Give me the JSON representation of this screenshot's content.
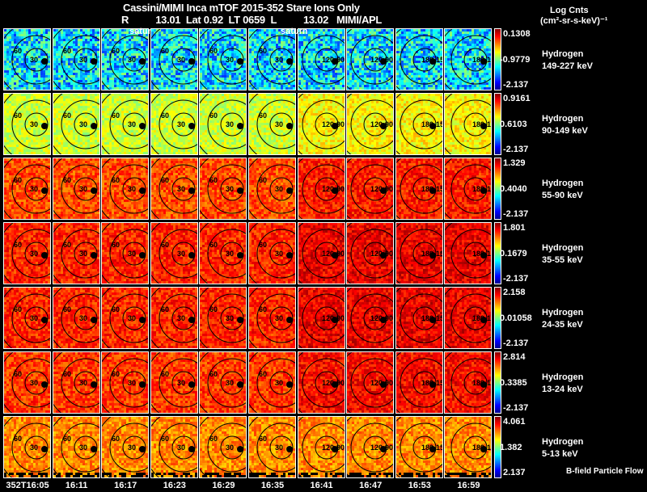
{
  "header": {
    "title": "Cassini/MIMI Inca mTOF  2015-352    Stare    Ions Only",
    "subtitle": "R          13.01  Lat 0.92  LT 0659  L          13.02   MIMI/APL",
    "saturn_label_1": "satur",
    "saturn_label_2": "saturn"
  },
  "units": {
    "line1": "Log Cnts",
    "line2": "(cm²-sr-s-keV)⁻¹"
  },
  "footer_note": "B-field Particle Flow",
  "chart_data": {
    "type": "heatmap",
    "title": "Cassini/MIMI Inca mTOF 2015-352 Stare Ions Only",
    "columns": [
      "352T16:05",
      "16:11",
      "16:17",
      "16:23",
      "16:29",
      "16:35",
      "16:41",
      "16:47",
      "16:53",
      "16:59"
    ],
    "contour_labels": [
      "30",
      "60",
      "90",
      "120",
      "150",
      "180"
    ],
    "rows": [
      {
        "species": "Hydrogen",
        "energy": "149-227 keV",
        "max": "0.1308",
        "mid": "-0.9779",
        "min": "-2.137",
        "mean_level": 0.35
      },
      {
        "species": "Hydrogen",
        "energy": "90-149 keV",
        "max": "0.9161",
        "mid": "0.6103",
        "min": "-2.137",
        "mean_level": 0.58
      },
      {
        "species": "Hydrogen",
        "energy": "55-90 keV",
        "max": "1.329",
        "mid": "0.4040",
        "min": "-2.137",
        "mean_level": 0.8
      },
      {
        "species": "Hydrogen",
        "energy": "35-55 keV",
        "max": "1.801",
        "mid": "0.1679",
        "min": "-2.137",
        "mean_level": 0.84
      },
      {
        "species": "Hydrogen",
        "energy": "24-35 keV",
        "max": "2.158",
        "mid": "0.01058",
        "min": "-2.137",
        "mean_level": 0.84
      },
      {
        "species": "Hydrogen",
        "energy": "13-24 keV",
        "max": "2.814",
        "mid": "0.3385",
        "min": "-2.137",
        "mean_level": 0.82
      },
      {
        "species": "Hydrogen",
        "energy": "5-13 keV",
        "max": "4.061",
        "mid": "1.382",
        "min": "2.137",
        "mean_level": 0.74
      }
    ]
  }
}
